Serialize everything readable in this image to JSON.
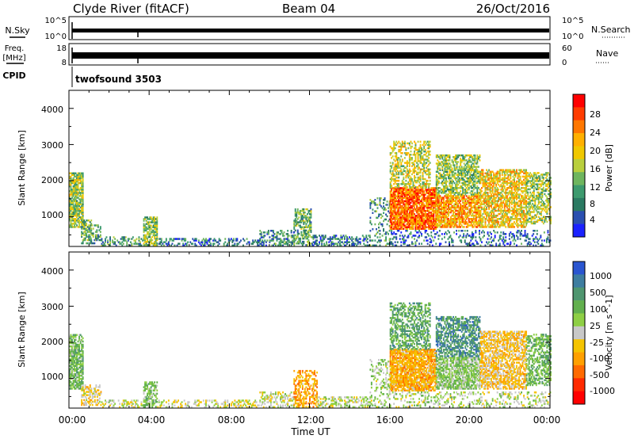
{
  "header": {
    "title": "Clyde River (fitACF)",
    "beam": "Beam 04",
    "date": "26/Oct/2016"
  },
  "aux_panels": {
    "nsky": {
      "label": "N.Sky",
      "left_ticks": [
        "10^5",
        "10^0"
      ],
      "right_ticks": [
        "10^5",
        "10^0"
      ],
      "right_label": "N.Search"
    },
    "freq": {
      "label": "Freq.",
      "unit": "[MHz]",
      "left_ticks": [
        "18",
        "8"
      ],
      "right_ticks": [
        "60",
        "0"
      ],
      "right_label": "Nave"
    },
    "cpid": {
      "label": "CPID",
      "value": "twofsound 3503"
    }
  },
  "x_axis": {
    "label": "Time UT",
    "ticks": [
      "00:00",
      "04:00",
      "08:00",
      "12:00",
      "16:00",
      "20:00",
      "00:00"
    ]
  },
  "colors": {
    "missing": "#ffffff"
  },
  "chart_data": [
    {
      "type": "heatmap",
      "parameter": "Power",
      "xlabel": "Time UT",
      "ylabel": "Slant Range [km]",
      "xlim": [
        0,
        24
      ],
      "ylim": [
        180,
        4500
      ],
      "yticks": [
        "1000",
        "2000",
        "3000",
        "4000"
      ],
      "colorbar": {
        "label": "Power [dB]",
        "ticks": [
          "28",
          "24",
          "20",
          "16",
          "12",
          "8",
          "4"
        ],
        "colors": [
          "#ff0000",
          "#ff3c00",
          "#ff7700",
          "#ffb000",
          "#f0c800",
          "#b9cf3d",
          "#6eb55e",
          "#3d9a6e",
          "#2b7a62",
          "#2a4fb0",
          "#1b22ff"
        ],
        "range": [
          0,
          30
        ]
      },
      "regions": [
        {
          "t": [
            0.0,
            0.7
          ],
          "r": [
            700,
            2200
          ],
          "value": 14,
          "density": 0.8
        },
        {
          "t": [
            0.6,
            1.1
          ],
          "r": [
            250,
            900
          ],
          "value": 11,
          "density": 0.55
        },
        {
          "t": [
            1.0,
            1.6
          ],
          "r": [
            250,
            750
          ],
          "value": 10,
          "density": 0.45
        },
        {
          "t": [
            1.6,
            3.7
          ],
          "r": [
            190,
            420
          ],
          "value": 9,
          "density": 0.45
        },
        {
          "t": [
            3.7,
            4.4
          ],
          "r": [
            200,
            1000
          ],
          "value": 13,
          "density": 0.65
        },
        {
          "t": [
            4.4,
            9.5
          ],
          "r": [
            190,
            400
          ],
          "value": 6,
          "density": 0.35
        },
        {
          "t": [
            9.5,
            11.2
          ],
          "r": [
            190,
            600
          ],
          "value": 8,
          "density": 0.45
        },
        {
          "t": [
            11.2,
            12.1
          ],
          "r": [
            200,
            1200
          ],
          "value": 11,
          "density": 0.55
        },
        {
          "t": [
            12.1,
            15.0
          ],
          "r": [
            190,
            500
          ],
          "value": 7,
          "density": 0.45
        },
        {
          "t": [
            15.0,
            16.0
          ],
          "r": [
            190,
            1500
          ],
          "value": 9,
          "density": 0.25
        },
        {
          "t": [
            16.0,
            18.3
          ],
          "r": [
            650,
            1800
          ],
          "value": 24,
          "density": 0.85
        },
        {
          "t": [
            16.0,
            18.0
          ],
          "r": [
            1800,
            3100
          ],
          "value": 16,
          "density": 0.5
        },
        {
          "t": [
            18.3,
            20.5
          ],
          "r": [
            700,
            1600
          ],
          "value": 21,
          "density": 0.75
        },
        {
          "t": [
            18.3,
            20.5
          ],
          "r": [
            1600,
            2700
          ],
          "value": 13,
          "density": 0.6
        },
        {
          "t": [
            20.5,
            22.8
          ],
          "r": [
            700,
            2300
          ],
          "value": 18,
          "density": 0.65
        },
        {
          "t": [
            22.8,
            24.0
          ],
          "r": [
            800,
            2200
          ],
          "value": 14,
          "density": 0.5
        },
        {
          "t": [
            16.0,
            24.0
          ],
          "r": [
            190,
            600
          ],
          "value": 6,
          "density": 0.25
        }
      ]
    },
    {
      "type": "heatmap",
      "parameter": "Velocity",
      "xlabel": "Time UT",
      "ylabel": "Slant Range [km]",
      "xlim": [
        0,
        24
      ],
      "ylim": [
        180,
        4500
      ],
      "yticks": [
        "1000",
        "2000",
        "3000",
        "4000"
      ],
      "colorbar": {
        "label": "Velocity [m s^-1]",
        "ticks": [
          "1000",
          "500",
          "100",
          "25",
          "-25",
          "-100",
          "-500",
          "-1000"
        ],
        "colors": [
          "#2a55d0",
          "#3e7da0",
          "#4f9670",
          "#62b04e",
          "#8ecf45",
          "#c8c8c8",
          "#f5c400",
          "#ffa000",
          "#ff6a00",
          "#ff2a00",
          "#ff0000"
        ],
        "range": [
          -1200,
          1200
        ]
      },
      "regions": [
        {
          "t": [
            0.0,
            0.7
          ],
          "r": [
            700,
            2200
          ],
          "value": 350,
          "density": 0.8
        },
        {
          "t": [
            0.6,
            1.6
          ],
          "r": [
            250,
            800
          ],
          "value": -150,
          "density": 0.5
        },
        {
          "t": [
            1.6,
            3.7
          ],
          "r": [
            190,
            400
          ],
          "value": 40,
          "density": 0.4
        },
        {
          "t": [
            3.7,
            4.4
          ],
          "r": [
            200,
            900
          ],
          "value": 300,
          "density": 0.6
        },
        {
          "t": [
            4.4,
            9.5
          ],
          "r": [
            190,
            380
          ],
          "value": -20,
          "density": 0.35
        },
        {
          "t": [
            9.5,
            11.2
          ],
          "r": [
            190,
            600
          ],
          "value": 60,
          "density": 0.4
        },
        {
          "t": [
            11.2,
            12.4
          ],
          "r": [
            200,
            1200
          ],
          "value": -400,
          "density": 0.5
        },
        {
          "t": [
            12.4,
            15.0
          ],
          "r": [
            190,
            500
          ],
          "value": 80,
          "density": 0.45
        },
        {
          "t": [
            15.0,
            16.0
          ],
          "r": [
            190,
            1500
          ],
          "value": 150,
          "density": 0.25
        },
        {
          "t": [
            16.0,
            18.3
          ],
          "r": [
            650,
            1800
          ],
          "value": -350,
          "density": 0.85
        },
        {
          "t": [
            16.0,
            18.0
          ],
          "r": [
            1800,
            3100
          ],
          "value": 500,
          "density": 0.5
        },
        {
          "t": [
            18.3,
            20.5
          ],
          "r": [
            700,
            1600
          ],
          "value": 250,
          "density": 0.75
        },
        {
          "t": [
            18.3,
            20.5
          ],
          "r": [
            1600,
            2700
          ],
          "value": 700,
          "density": 0.6
        },
        {
          "t": [
            20.5,
            22.8
          ],
          "r": [
            700,
            2300
          ],
          "value": -250,
          "density": 0.65
        },
        {
          "t": [
            22.8,
            24.0
          ],
          "r": [
            800,
            2200
          ],
          "value": 400,
          "density": 0.5
        },
        {
          "t": [
            16.0,
            24.0
          ],
          "r": [
            190,
            600
          ],
          "value": 100,
          "density": 0.25
        }
      ]
    }
  ]
}
